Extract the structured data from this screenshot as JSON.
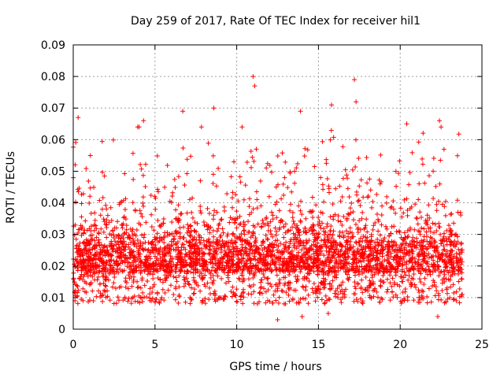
{
  "chart_data": {
    "type": "scatter",
    "title": "Day 259 of 2017, Rate Of TEC Index for receiver hil1",
    "xlabel": "GPS time / hours",
    "ylabel": "ROTI / TECUs",
    "xlim": [
      0,
      25
    ],
    "ylim": [
      0,
      0.09
    ],
    "x_ticks": [
      "0",
      "5",
      "10",
      "15",
      "20",
      "25"
    ],
    "y_ticks": [
      "0",
      "0.01",
      "0.02",
      "0.03",
      "0.04",
      "0.05",
      "0.06",
      "0.07",
      "0.08",
      "0.09"
    ],
    "grid": true,
    "marker": "+",
    "point_color": "#ff0000",
    "x_range_hours": [
      0,
      23.8
    ],
    "typical_band": [
      0.01,
      0.035
    ],
    "outliers": [
      {
        "x": 0.3,
        "y": 0.067
      },
      {
        "x": 4.3,
        "y": 0.066
      },
      {
        "x": 6.7,
        "y": 0.069
      },
      {
        "x": 8.6,
        "y": 0.07
      },
      {
        "x": 11.0,
        "y": 0.08
      },
      {
        "x": 11.1,
        "y": 0.077
      },
      {
        "x": 13.9,
        "y": 0.069
      },
      {
        "x": 15.8,
        "y": 0.071
      },
      {
        "x": 17.2,
        "y": 0.079
      },
      {
        "x": 17.3,
        "y": 0.072
      },
      {
        "x": 20.4,
        "y": 0.065
      },
      {
        "x": 22.4,
        "y": 0.066
      },
      {
        "x": 22.5,
        "y": 0.064
      },
      {
        "x": 12.5,
        "y": 0.003
      },
      {
        "x": 14.0,
        "y": 0.004
      },
      {
        "x": 15.6,
        "y": 0.005
      },
      {
        "x": 22.3,
        "y": 0.004
      }
    ]
  }
}
